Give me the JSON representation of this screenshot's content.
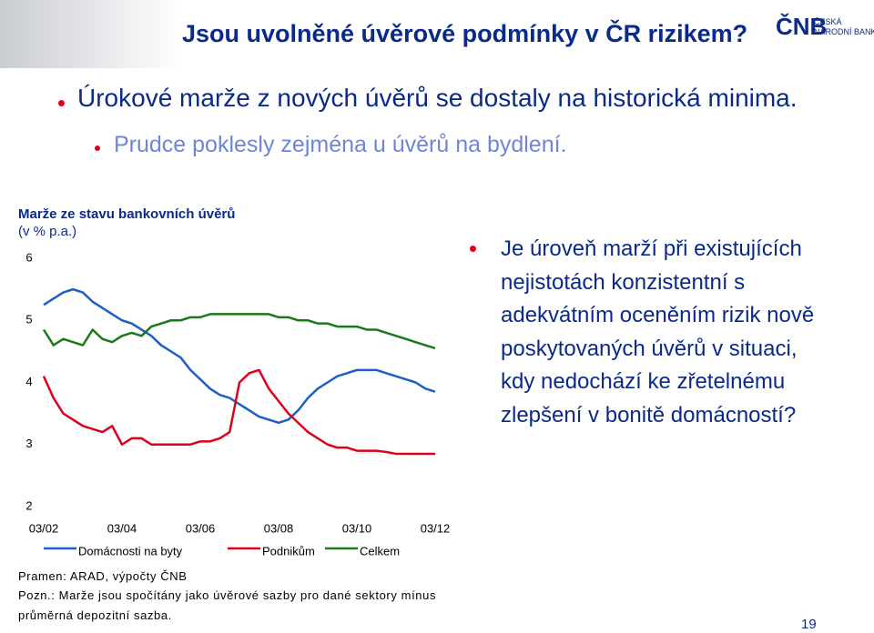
{
  "title": "Jsou uvolněné úvěrové podmínky v ČR rizikem?",
  "logo": {
    "mark": "ČNB",
    "name": [
      "ČESKÁ",
      "NÁRODNÍ BANKA"
    ]
  },
  "bullets": [
    "Úrokové marže z nových úvěrů se dostaly na historická minima.",
    "Prudce poklesly zejména u úvěrů na bydlení."
  ],
  "side_text": [
    "Je úroveň marží při existujících",
    "nejistotách konzistentní s",
    "adekvátním oceněním rizik nově",
    "poskytovaných úvěrů v situaci,",
    "kdy nedochází ke zřetelnému",
    "zlepšení v bonitě domácností?"
  ],
  "footer": {
    "source": "Pramen: ARAD, výpočty ČNB",
    "note": "Pozn.: Marže jsou spočítány jako úvěrové sazby pro dané sektory mínus průměrná depozitní sazba."
  },
  "page_number": "19",
  "chart_data": {
    "type": "line",
    "title": "Marže ze stavu bankovních úvěrů",
    "subtitle": "(v % p.a.)",
    "categories": [
      "03/02",
      null,
      null,
      null,
      null,
      null,
      null,
      null,
      "03/04",
      null,
      null,
      null,
      null,
      null,
      null,
      null,
      "03/06",
      null,
      null,
      null,
      null,
      null,
      null,
      null,
      "03/08",
      null,
      null,
      null,
      null,
      null,
      null,
      null,
      "03/10",
      null,
      null,
      null,
      null,
      null,
      null,
      null,
      "03/12"
    ],
    "series": [
      {
        "name": "Domácnosti na byty",
        "color": "#1f5fc4",
        "values": [
          5.25,
          5.35,
          5.45,
          5.5,
          5.45,
          5.3,
          5.2,
          5.1,
          5.0,
          4.95,
          4.85,
          4.75,
          4.6,
          4.5,
          4.4,
          4.2,
          4.05,
          3.9,
          3.8,
          3.75,
          3.65,
          3.55,
          3.45,
          3.4,
          3.35,
          3.4,
          3.55,
          3.75,
          3.9,
          4.0,
          4.1,
          4.15,
          4.2,
          4.2,
          4.2,
          4.15,
          4.1,
          4.05,
          4.0,
          3.9,
          3.85
        ]
      },
      {
        "name": "Podnikům",
        "color": "#e0001a",
        "values": [
          4.1,
          3.75,
          3.5,
          3.4,
          3.3,
          3.25,
          3.2,
          3.3,
          3.0,
          3.1,
          3.1,
          3.0,
          3.0,
          3.0,
          3.0,
          3.0,
          3.05,
          3.05,
          3.1,
          3.2,
          4.0,
          4.15,
          4.2,
          3.9,
          3.7,
          3.5,
          3.35,
          3.2,
          3.1,
          3.0,
          2.95,
          2.95,
          2.9,
          2.9,
          2.9,
          2.88,
          2.85,
          2.85,
          2.85,
          2.85,
          2.85
        ]
      },
      {
        "name": "Celkem",
        "color": "#1a7a1a",
        "values": [
          4.85,
          4.6,
          4.7,
          4.65,
          4.6,
          4.85,
          4.7,
          4.65,
          4.75,
          4.8,
          4.75,
          4.9,
          4.95,
          5.0,
          5.0,
          5.05,
          5.05,
          5.1,
          5.1,
          5.1,
          5.1,
          5.1,
          5.1,
          5.1,
          5.05,
          5.05,
          5.0,
          5.0,
          4.95,
          4.95,
          4.9,
          4.9,
          4.9,
          4.85,
          4.85,
          4.8,
          4.75,
          4.7,
          4.65,
          4.6,
          4.55
        ]
      }
    ],
    "ylim": [
      2,
      6
    ],
    "yticks": [
      2,
      3,
      4,
      5,
      6
    ],
    "grid": false
  }
}
